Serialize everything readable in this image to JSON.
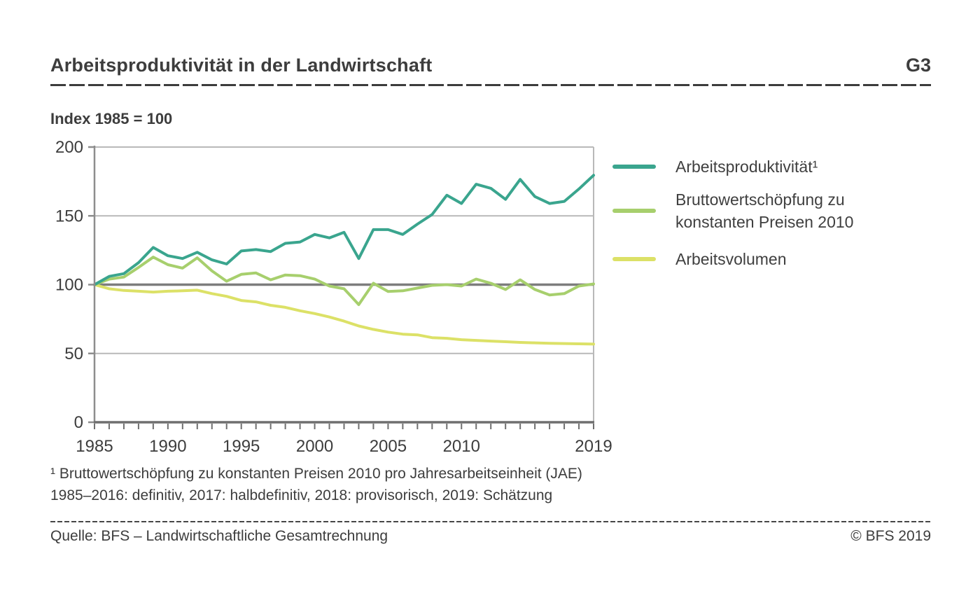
{
  "header": {
    "title": "Arbeitsproduktivität in der Landwirtschaft",
    "figure_code": "G3"
  },
  "subtitle": "Index 1985 = 100",
  "chart_data": {
    "type": "line",
    "title": "Arbeitsproduktivität in der Landwirtschaft",
    "index_note": "Index 1985 = 100",
    "x": [
      1985,
      1986,
      1987,
      1988,
      1989,
      1990,
      1991,
      1992,
      1993,
      1994,
      1995,
      1996,
      1997,
      1998,
      1999,
      2000,
      2001,
      2002,
      2003,
      2004,
      2005,
      2006,
      2007,
      2008,
      2009,
      2010,
      2011,
      2012,
      2013,
      2014,
      2015,
      2016,
      2017,
      2018,
      2019
    ],
    "series": [
      {
        "id": "arbeitsvolumen",
        "name": "Arbeitsvolumen",
        "color": "#dce167",
        "values": [
          100,
          97,
          95.8,
          95.2,
          94.6,
          95.2,
          95.5,
          96,
          93.5,
          91.5,
          88.5,
          87.5,
          85,
          83.5,
          81,
          79,
          76.5,
          73.5,
          70,
          67.5,
          65.5,
          64,
          63.5,
          61.5,
          61,
          60,
          59.5,
          59,
          58.5,
          58,
          57.7,
          57.4,
          57.2,
          57,
          56.8
        ]
      },
      {
        "id": "bruttowertschoepfung",
        "name": "Bruttowertschöpfung zu konstanten Preisen 2010",
        "color": "#a7cf6d",
        "values": [
          100,
          104,
          105.5,
          112.5,
          120,
          114.5,
          112,
          119.5,
          110,
          102.5,
          107.5,
          108.5,
          103.5,
          107,
          106.5,
          104,
          99,
          97,
          85.5,
          101,
          95,
          95.5,
          97.5,
          99.5,
          100,
          99,
          104,
          101,
          96.5,
          103.5,
          96.5,
          92.5,
          93.5,
          99,
          100.5
        ]
      },
      {
        "id": "arbeitsproduktivitaet",
        "name": "Arbeitsproduktivität¹",
        "color": "#3aa58e",
        "values": [
          100,
          106,
          108,
          116,
          127,
          121,
          119,
          123.5,
          118,
          115,
          124.5,
          125.5,
          124,
          130,
          131,
          136.5,
          134,
          138,
          119,
          140,
          140,
          136.5,
          144,
          151,
          165,
          159,
          173,
          170,
          162,
          176.5,
          164,
          159,
          160.5,
          169.5,
          179.5
        ]
      }
    ],
    "ylim": [
      0,
      200
    ],
    "yticks": [
      0,
      50,
      100,
      150,
      200
    ],
    "xticks": [
      1985,
      1990,
      1995,
      2000,
      2005,
      2010,
      2019
    ],
    "emphasized_gridline": 100,
    "grid": "horizontal",
    "legend_position": "right"
  },
  "legend": {
    "item1": "Arbeitsproduktivität¹",
    "item2_line1": "Bruttowertschöpfung zu",
    "item2_line2": "konstanten Preisen 2010",
    "item3": "Arbeitsvolumen"
  },
  "footnotes": [
    "¹  Bruttowertschöpfung zu konstanten Preisen 2010 pro Jahresarbeitseinheit (JAE)",
    "1985–2016: definitiv, 2017: halbdefinitiv, 2018: provisorisch, 2019: Schätzung"
  ],
  "footer": {
    "source": "Quelle: BFS – Landwirtschaftliche Gesamtrechnung",
    "copyright": "© BFS 2019"
  },
  "colors": {
    "text": "#3d3d3d",
    "grid_light": "#b9b9b9",
    "grid_dark": "#7d7d7d",
    "axis_left": "#8d8d8d",
    "axis_bottom": "#6f6f6f"
  }
}
